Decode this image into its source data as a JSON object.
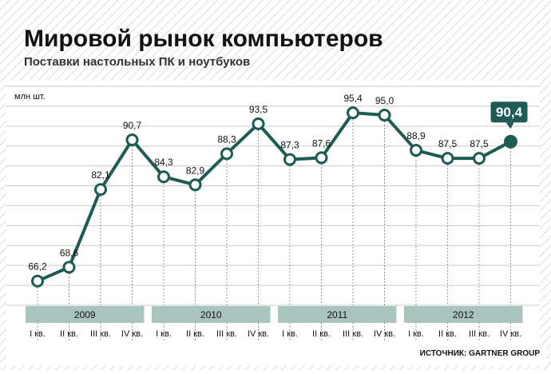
{
  "title": "Мировой рынок компьютеров",
  "subtitle": "Поставки настольных ПК и ноутбуков",
  "source": "ИСТОЧНИК: GARTNER GROUP",
  "colors": {
    "line": "#1f5b55",
    "band": "#a9c3bf",
    "highlight": "#1f5b55",
    "grid": "#c9c9c9",
    "hatch": "#e2e2e2"
  },
  "chart_data": {
    "type": "line",
    "ylabel": "млн шт.",
    "ylim": [
      62,
      100
    ],
    "grid": true,
    "years": [
      "2009",
      "2010",
      "2011",
      "2012"
    ],
    "categories": [
      "I кв.",
      "II кв.",
      "III кв.",
      "IV кв.",
      "I кв.",
      "II кв.",
      "III кв.",
      "IV кв.",
      "I кв.",
      "II кв.",
      "III кв.",
      "IV кв.",
      "I кв.",
      "II кв.",
      "III кв.",
      "IV кв."
    ],
    "values": [
      66.2,
      68.6,
      82.1,
      90.7,
      84.3,
      82.9,
      88.3,
      93.5,
      87.3,
      87.6,
      95.4,
      95.0,
      88.9,
      87.5,
      87.5,
      90.4
    ],
    "labels": [
      "66,2",
      "68,6",
      "82,1",
      "90,7",
      "84,3",
      "82,9",
      "88,3",
      "93,5",
      "87,3",
      "87,6",
      "95,4",
      "95,0",
      "88,9",
      "87,5",
      "87,5",
      "90,4"
    ],
    "highlight_index": 15
  }
}
